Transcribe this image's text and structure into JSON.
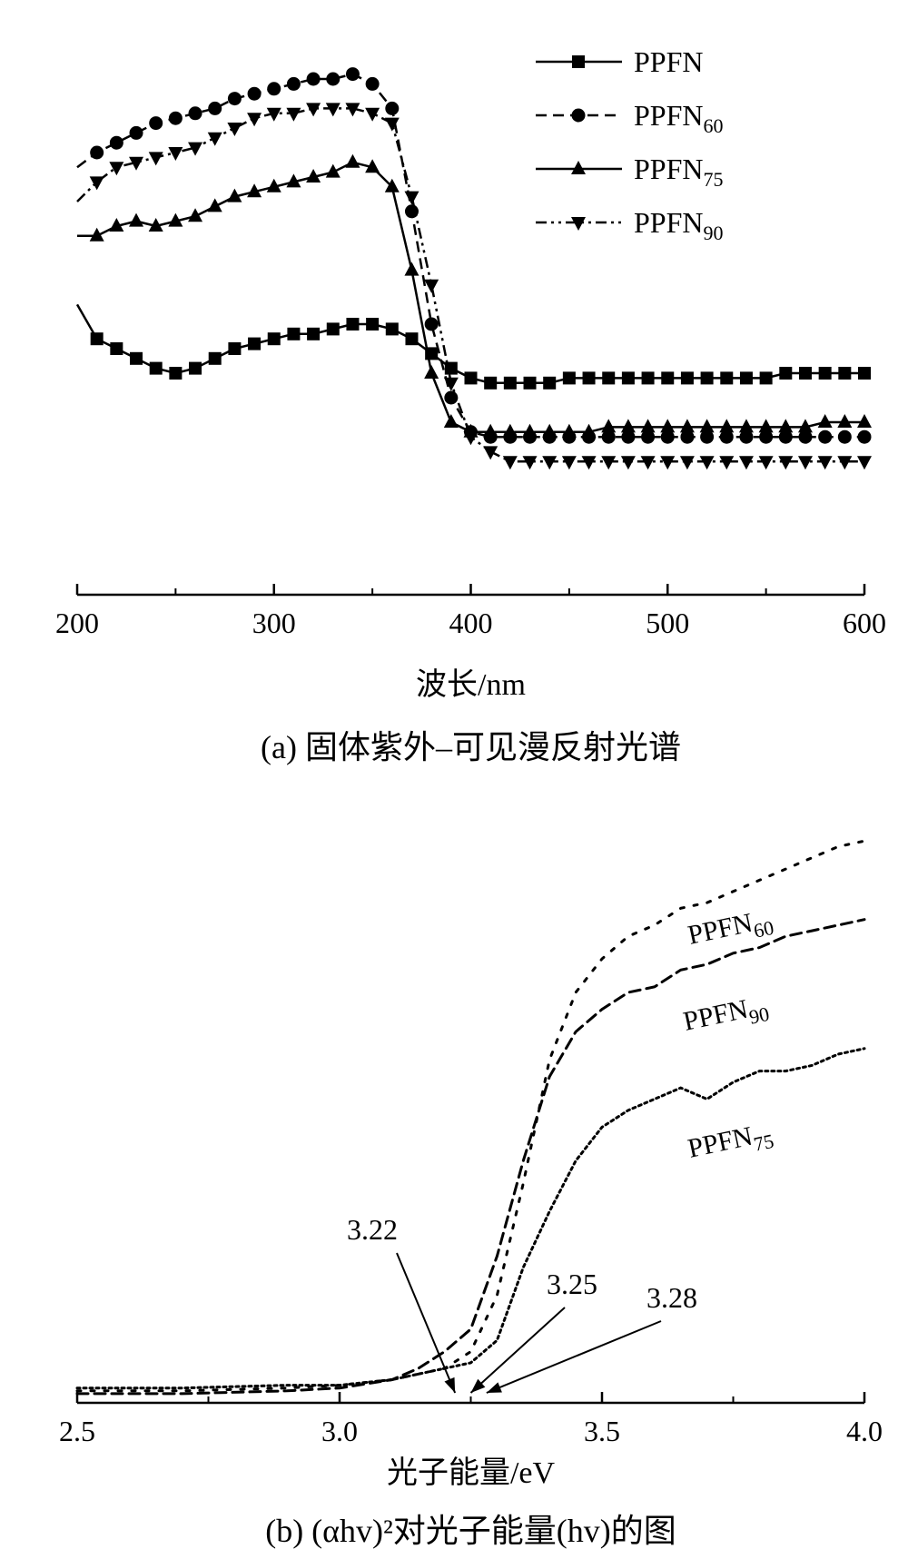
{
  "chart_data": [
    {
      "type": "line",
      "caption": "(a) 固体紫外–可见漫反射光谱",
      "xlabel": "波长/nm",
      "ylabel": "",
      "xlim": [
        200,
        600
      ],
      "x_ticks": [
        "200",
        "300",
        "400",
        "500",
        "600"
      ],
      "y_axis_shown": false,
      "legend_position": "top-right",
      "series": [
        {
          "name": "PPFN",
          "line_style": "solid",
          "marker": "square",
          "x": [
            200,
            210,
            220,
            230,
            240,
            250,
            260,
            270,
            280,
            290,
            300,
            310,
            320,
            330,
            340,
            350,
            360,
            370,
            380,
            390,
            400,
            410,
            420,
            430,
            440,
            450,
            460,
            470,
            480,
            490,
            500,
            510,
            520,
            530,
            540,
            550,
            560,
            570,
            580,
            590,
            600
          ],
          "y": [
            0.49,
            0.42,
            0.4,
            0.38,
            0.36,
            0.35,
            0.36,
            0.38,
            0.4,
            0.41,
            0.42,
            0.43,
            0.43,
            0.44,
            0.45,
            0.45,
            0.44,
            0.42,
            0.39,
            0.36,
            0.34,
            0.33,
            0.33,
            0.33,
            0.33,
            0.34,
            0.34,
            0.34,
            0.34,
            0.34,
            0.34,
            0.34,
            0.34,
            0.34,
            0.34,
            0.34,
            0.35,
            0.35,
            0.35,
            0.35,
            0.35
          ]
        },
        {
          "name": "PPFN60",
          "line_style": "dashed",
          "marker": "circle",
          "x": [
            200,
            210,
            220,
            230,
            240,
            250,
            260,
            270,
            280,
            290,
            300,
            310,
            320,
            330,
            340,
            350,
            360,
            370,
            380,
            390,
            400,
            410,
            420,
            430,
            440,
            450,
            460,
            470,
            480,
            490,
            500,
            510,
            520,
            530,
            540,
            550,
            560,
            570,
            580,
            590,
            600
          ],
          "y": [
            0.77,
            0.8,
            0.82,
            0.84,
            0.86,
            0.87,
            0.88,
            0.89,
            0.91,
            0.92,
            0.93,
            0.94,
            0.95,
            0.95,
            0.96,
            0.94,
            0.89,
            0.68,
            0.45,
            0.3,
            0.23,
            0.22,
            0.22,
            0.22,
            0.22,
            0.22,
            0.22,
            0.22,
            0.22,
            0.22,
            0.22,
            0.22,
            0.22,
            0.22,
            0.22,
            0.22,
            0.22,
            0.22,
            0.22,
            0.22,
            0.22
          ]
        },
        {
          "name": "PPFN75",
          "line_style": "solid",
          "marker": "triangle-up",
          "x": [
            200,
            210,
            220,
            230,
            240,
            250,
            260,
            270,
            280,
            290,
            300,
            310,
            320,
            330,
            340,
            350,
            360,
            370,
            380,
            390,
            400,
            410,
            420,
            430,
            440,
            450,
            460,
            470,
            480,
            490,
            500,
            510,
            520,
            530,
            540,
            550,
            560,
            570,
            580,
            590,
            600
          ],
          "y": [
            0.63,
            0.63,
            0.65,
            0.66,
            0.65,
            0.66,
            0.67,
            0.69,
            0.71,
            0.72,
            0.73,
            0.74,
            0.75,
            0.76,
            0.78,
            0.77,
            0.73,
            0.56,
            0.35,
            0.25,
            0.23,
            0.23,
            0.23,
            0.23,
            0.23,
            0.23,
            0.23,
            0.24,
            0.24,
            0.24,
            0.24,
            0.24,
            0.24,
            0.24,
            0.24,
            0.24,
            0.24,
            0.24,
            0.25,
            0.25,
            0.25
          ]
        },
        {
          "name": "PPFN90",
          "line_style": "dash-dot-dot",
          "marker": "triangle-down",
          "x": [
            200,
            210,
            220,
            230,
            240,
            250,
            260,
            270,
            280,
            290,
            300,
            310,
            320,
            330,
            340,
            350,
            360,
            370,
            380,
            390,
            400,
            410,
            420,
            430,
            440,
            450,
            460,
            470,
            480,
            490,
            500,
            510,
            520,
            530,
            540,
            550,
            560,
            570,
            580,
            590,
            600
          ],
          "y": [
            0.7,
            0.74,
            0.77,
            0.78,
            0.79,
            0.8,
            0.81,
            0.83,
            0.85,
            0.87,
            0.88,
            0.88,
            0.89,
            0.89,
            0.89,
            0.88,
            0.86,
            0.71,
            0.53,
            0.33,
            0.22,
            0.19,
            0.17,
            0.17,
            0.17,
            0.17,
            0.17,
            0.17,
            0.17,
            0.17,
            0.17,
            0.17,
            0.17,
            0.17,
            0.17,
            0.17,
            0.17,
            0.17,
            0.17,
            0.17,
            0.17
          ]
        }
      ]
    },
    {
      "type": "line",
      "caption": "(b) (αhv)²对光子能量(hv)的图",
      "xlabel": "光子能量/eV",
      "ylabel": "",
      "xlim": [
        2.5,
        4.0
      ],
      "x_ticks": [
        "2.5",
        "3.0",
        "3.5",
        "4.0"
      ],
      "y_axis_shown": false,
      "series": [
        {
          "name": "PPFN60",
          "line_style": "dotted-sparse",
          "x": [
            2.5,
            2.7,
            2.9,
            3.0,
            3.1,
            3.15,
            3.2,
            3.25,
            3.3,
            3.35,
            3.4,
            3.45,
            3.5,
            3.55,
            3.6,
            3.65,
            3.7,
            3.75,
            3.8,
            3.85,
            3.9,
            3.95,
            4.0
          ],
          "y": [
            0.01,
            0.01,
            0.015,
            0.02,
            0.03,
            0.04,
            0.05,
            0.08,
            0.18,
            0.38,
            0.6,
            0.72,
            0.78,
            0.82,
            0.84,
            0.87,
            0.88,
            0.9,
            0.92,
            0.94,
            0.96,
            0.98,
            0.99
          ]
        },
        {
          "name": "PPFN90",
          "line_style": "dashed",
          "x": [
            2.5,
            2.7,
            2.9,
            3.0,
            3.1,
            3.15,
            3.2,
            3.25,
            3.3,
            3.35,
            3.4,
            3.45,
            3.5,
            3.55,
            3.6,
            3.65,
            3.7,
            3.75,
            3.8,
            3.85,
            3.9,
            3.95,
            4.0
          ],
          "y": [
            0.005,
            0.005,
            0.01,
            0.015,
            0.03,
            0.05,
            0.08,
            0.12,
            0.25,
            0.42,
            0.57,
            0.65,
            0.69,
            0.72,
            0.73,
            0.76,
            0.77,
            0.79,
            0.8,
            0.82,
            0.83,
            0.84,
            0.85
          ]
        },
        {
          "name": "PPFN75",
          "line_style": "dotted",
          "x": [
            2.5,
            2.7,
            2.9,
            3.0,
            3.1,
            3.15,
            3.2,
            3.25,
            3.3,
            3.35,
            3.4,
            3.45,
            3.5,
            3.55,
            3.6,
            3.65,
            3.7,
            3.75,
            3.8,
            3.85,
            3.9,
            3.95,
            4.0
          ],
          "y": [
            0.015,
            0.015,
            0.02,
            0.02,
            0.03,
            0.04,
            0.05,
            0.06,
            0.1,
            0.23,
            0.33,
            0.42,
            0.48,
            0.51,
            0.53,
            0.55,
            0.53,
            0.56,
            0.58,
            0.58,
            0.59,
            0.61,
            0.62
          ]
        }
      ],
      "curve_labels": [
        {
          "series": "PPFN60",
          "text": "PPFN",
          "sub": "60"
        },
        {
          "series": "PPFN90",
          "text": "PPFN",
          "sub": "90"
        },
        {
          "series": "PPFN75",
          "text": "PPFN",
          "sub": "75"
        }
      ],
      "annotations": [
        {
          "text": "3.22",
          "x": 3.22
        },
        {
          "text": "3.25",
          "x": 3.25
        },
        {
          "text": "3.28",
          "x": 3.28
        }
      ]
    }
  ],
  "legend": [
    {
      "base": "PPFN",
      "sub": ""
    },
    {
      "base": "PPFN",
      "sub": "60"
    },
    {
      "base": "PPFN",
      "sub": "75"
    },
    {
      "base": "PPFN",
      "sub": "90"
    }
  ]
}
